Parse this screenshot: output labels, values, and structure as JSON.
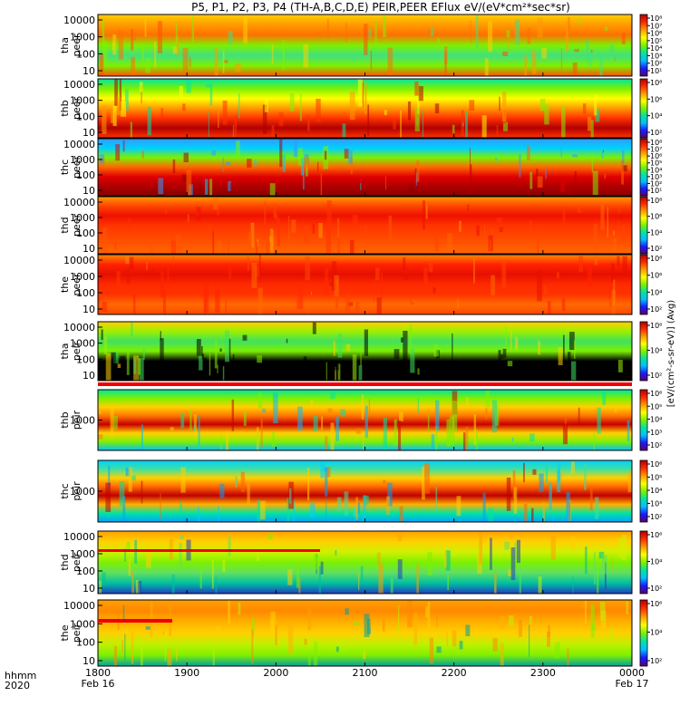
{
  "chart_data": {
    "type": "heatmap",
    "title": "P5, P1, P2, P3, P4 (TH-A,B,C,D,E) PEIR,PEER EFlux eV/(eV*cm²*sec*sr)",
    "colorbar_label": "[eV/(cm²-s-sr-eV)] (Avg)",
    "colorscale": [
      "#5a006e",
      "#1a1aff",
      "#00bfff",
      "#00e5a0",
      "#7df000",
      "#ffff00",
      "#ff9900",
      "#ff2a00",
      "#b00000"
    ],
    "x_axis": {
      "ticks": [
        "1800",
        "1900",
        "2000",
        "2100",
        "2200",
        "2300",
        "0000"
      ],
      "row_label_time": "hhmm",
      "row_label_year": "2020",
      "start_date": "Feb 16",
      "end_date": "Feb 17"
    },
    "panels": [
      {
        "probe": "tha",
        "species": "peer",
        "yticks": [
          "10000",
          "1000",
          "100",
          "10"
        ],
        "cbticks": [
          "10⁸",
          "10⁷",
          "10⁶",
          "10⁵",
          "10⁴",
          "10³",
          "10²",
          "10¹"
        ]
      },
      {
        "probe": "thb",
        "species": "peer",
        "yticks": [
          "10000",
          "1000",
          "100",
          "10"
        ],
        "cbticks": [
          "10⁸",
          "10⁶",
          "10⁴",
          "10²"
        ]
      },
      {
        "probe": "thc",
        "species": "peer",
        "yticks": [
          "10000",
          "1000",
          "100",
          "10"
        ],
        "cbticks": [
          "10⁸",
          "10⁷",
          "10⁶",
          "10⁵",
          "10⁴",
          "10³",
          "10²",
          "10¹"
        ]
      },
      {
        "probe": "thd",
        "species": "peer",
        "yticks": [
          "10000",
          "1000",
          "100",
          "10"
        ],
        "cbticks": [
          "10⁸",
          "10⁶",
          "10⁴",
          "10²"
        ]
      },
      {
        "probe": "the",
        "species": "peer",
        "yticks": [
          "10000",
          "1000",
          "100",
          "10"
        ],
        "cbticks": [
          "10⁸",
          "10⁶",
          "10⁴",
          "10²"
        ]
      },
      {
        "probe": "tha",
        "species": "peir",
        "yticks": [
          "10000",
          "1000",
          "100",
          "10"
        ],
        "cbticks": [
          "10⁶",
          "10⁴",
          "10²"
        ]
      },
      {
        "probe": "thb",
        "species": "peir",
        "yticks": [
          "1000"
        ],
        "cbticks": [
          "10⁶",
          "10⁵",
          "10⁴",
          "10³",
          "10²"
        ]
      },
      {
        "probe": "thc",
        "species": "peir",
        "yticks": [
          "1000"
        ],
        "cbticks": [
          "10⁶",
          "10⁵",
          "10⁴",
          "10³",
          "10²"
        ]
      },
      {
        "probe": "thd",
        "species": "peir",
        "yticks": [
          "10000",
          "1000",
          "100",
          "10"
        ],
        "cbticks": [
          "10⁶",
          "10⁴",
          "10²"
        ]
      },
      {
        "probe": "the",
        "species": "peir",
        "yticks": [
          "10000",
          "1000",
          "100",
          "10"
        ],
        "cbticks": [
          "10⁶",
          "10⁴",
          "10²"
        ]
      }
    ]
  }
}
